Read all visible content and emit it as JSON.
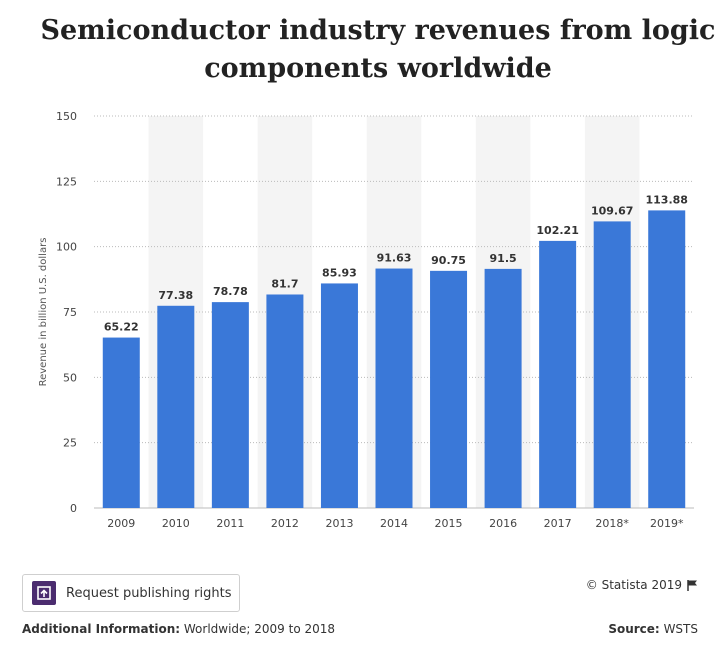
{
  "chart_data": {
    "type": "bar",
    "title": "Semiconductor industry revenues from logic components worldwide",
    "ylabel": "Revenue in billion U.S. dollars",
    "xlabel": "",
    "categories": [
      "2009",
      "2010",
      "2011",
      "2012",
      "2013",
      "2014",
      "2015",
      "2016",
      "2017",
      "2018*",
      "2019*"
    ],
    "values": [
      65.22,
      77.38,
      78.78,
      81.7,
      85.93,
      91.63,
      90.75,
      91.5,
      102.21,
      109.67,
      113.88
    ],
    "value_labels": [
      "65.22",
      "77.38",
      "78.78",
      "81.7",
      "85.93",
      "91.63",
      "90.75",
      "91.5",
      "102.21",
      "109.67",
      "113.88"
    ],
    "ylim": [
      0,
      150
    ],
    "yticks": [
      0,
      25,
      50,
      75,
      100,
      125,
      150
    ],
    "grid": true,
    "bar_color": "#3a78d8",
    "band_color": "#f4f4f4",
    "grid_color": "#bbbbbb"
  },
  "footer": {
    "request_button_label": "Request publishing rights",
    "request_icon": "publish-icon",
    "copyright": "© Statista 2019",
    "copyright_icon": "flag-icon",
    "additional_info_label": "Additional Information:",
    "additional_info_value": "Worldwide; 2009 to 2018",
    "source_label": "Source:",
    "source_value": "WSTS"
  },
  "colors": {
    "icon_bg": "#4b2c6f"
  }
}
